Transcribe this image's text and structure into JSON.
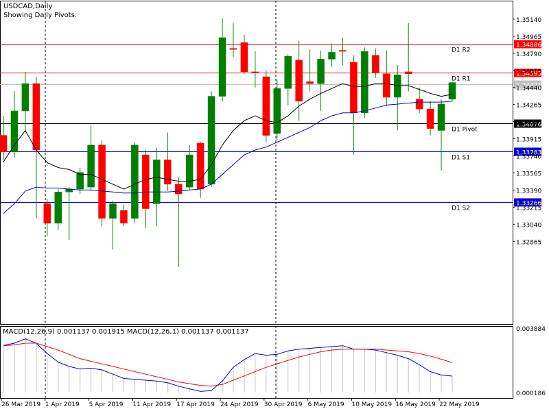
{
  "header": {
    "symbol": "USDCAD,Daily",
    "subtitle": "Showing Daily Pivots."
  },
  "macd_label": "MACD(12,26,9) 0.001137 0.001915 MACD(12,26,1) 0.001137 0.001137",
  "colors": {
    "up": "#008000",
    "down": "#ff0000",
    "wick": "#008000",
    "ma_short": "#000000",
    "ma_long": "#0000cc",
    "r_lines": "#ff0000",
    "s_lines": "#0000cc",
    "pivot": "#000000",
    "grid_sep": "#000000",
    "macd_main": "#0000cc",
    "macd_signal": "#ff0000",
    "macd_hist": "#c0c0c0"
  },
  "price_axis": {
    "min": 1.32,
    "max": 1.352,
    "ticks": [
      "1.35140",
      "1.34965",
      "1.34790",
      "1.34615",
      "1.34440",
      "1.34265",
      "1.34090",
      "1.33915",
      "1.33740",
      "1.33565",
      "1.33390",
      "1.33215",
      "1.33040",
      "1.32865"
    ]
  },
  "levels": [
    {
      "name": "D1 R2",
      "value": "1.34886",
      "type": "r"
    },
    {
      "name": "D1 R1",
      "value": "1.34593",
      "type": "r"
    },
    {
      "name": "current",
      "value": "1.34471",
      "type": "cur"
    },
    {
      "name": "D1 Pivot",
      "value": "1.34076",
      "type": "pivot"
    },
    {
      "name": "D1 S1",
      "value": "1.33783",
      "type": "s"
    },
    {
      "name": "D1 S2",
      "value": "1.33266",
      "type": "s"
    }
  ],
  "macd_axis": {
    "ticks": [
      "0.003884",
      "0.000186"
    ]
  },
  "date_labels": [
    "26 Mar 2019",
    "1 Apr 2019",
    "5 Apr 2019",
    "11 Apr 2019",
    "17 Apr 2019",
    "24 Apr 2019",
    "30 Apr 2019",
    "6 May 2019",
    "10 May 2019",
    "16 May 2019",
    "22 May 2019"
  ],
  "chart_data": {
    "type": "candlestick",
    "candles": [
      {
        "o": 1.3395,
        "h": 1.3415,
        "l": 1.337,
        "c": 1.3378
      },
      {
        "o": 1.3378,
        "h": 1.344,
        "l": 1.3372,
        "c": 1.342
      },
      {
        "o": 1.342,
        "h": 1.346,
        "l": 1.34,
        "c": 1.3448
      },
      {
        "o": 1.3448,
        "h": 1.3455,
        "l": 1.331,
        "c": 1.338
      },
      {
        "o": 1.3325,
        "h": 1.333,
        "l": 1.3292,
        "c": 1.3305
      },
      {
        "o": 1.3305,
        "h": 1.334,
        "l": 1.3298,
        "c": 1.3337
      },
      {
        "o": 1.3337,
        "h": 1.3342,
        "l": 1.3288,
        "c": 1.334
      },
      {
        "o": 1.334,
        "h": 1.3362,
        "l": 1.3335,
        "c": 1.3357
      },
      {
        "o": 1.3342,
        "h": 1.3405,
        "l": 1.3338,
        "c": 1.3385
      },
      {
        "o": 1.3385,
        "h": 1.339,
        "l": 1.3302,
        "c": 1.331
      },
      {
        "o": 1.331,
        "h": 1.3328,
        "l": 1.3278,
        "c": 1.3325
      },
      {
        "o": 1.3318,
        "h": 1.3324,
        "l": 1.3302,
        "c": 1.3305
      },
      {
        "o": 1.331,
        "h": 1.3388,
        "l": 1.3305,
        "c": 1.3385
      },
      {
        "o": 1.3375,
        "h": 1.338,
        "l": 1.33,
        "c": 1.332
      },
      {
        "o": 1.3325,
        "h": 1.3382,
        "l": 1.3302,
        "c": 1.337
      },
      {
        "o": 1.337,
        "h": 1.3398,
        "l": 1.3338,
        "c": 1.3345
      },
      {
        "o": 1.3345,
        "h": 1.3352,
        "l": 1.326,
        "c": 1.3335
      },
      {
        "o": 1.3342,
        "h": 1.3385,
        "l": 1.3339,
        "c": 1.3375
      },
      {
        "o": 1.3387,
        "h": 1.3388,
        "l": 1.3331,
        "c": 1.334
      },
      {
        "o": 1.3345,
        "h": 1.344,
        "l": 1.3342,
        "c": 1.3435
      },
      {
        "o": 1.3435,
        "h": 1.3515,
        "l": 1.343,
        "c": 1.3495
      },
      {
        "o": 1.3484,
        "h": 1.351,
        "l": 1.3475,
        "c": 1.3483
      },
      {
        "o": 1.349,
        "h": 1.3498,
        "l": 1.3458,
        "c": 1.346
      },
      {
        "o": 1.346,
        "h": 1.3481,
        "l": 1.3444,
        "c": 1.3459
      },
      {
        "o": 1.3455,
        "h": 1.3462,
        "l": 1.3388,
        "c": 1.3395
      },
      {
        "o": 1.3397,
        "h": 1.3452,
        "l": 1.339,
        "c": 1.3443
      },
      {
        "o": 1.3443,
        "h": 1.3478,
        "l": 1.3426,
        "c": 1.3476
      },
      {
        "o": 1.3472,
        "h": 1.3492,
        "l": 1.341,
        "c": 1.343
      },
      {
        "o": 1.345,
        "h": 1.3483,
        "l": 1.344,
        "c": 1.3448
      },
      {
        "o": 1.3448,
        "h": 1.3482,
        "l": 1.342,
        "c": 1.3473
      },
      {
        "o": 1.3473,
        "h": 1.3489,
        "l": 1.3465,
        "c": 1.348
      },
      {
        "o": 1.3482,
        "h": 1.3495,
        "l": 1.3467,
        "c": 1.3481
      },
      {
        "o": 1.347,
        "h": 1.3477,
        "l": 1.3375,
        "c": 1.3418
      },
      {
        "o": 1.3418,
        "h": 1.3485,
        "l": 1.3413,
        "c": 1.3481
      },
      {
        "o": 1.3477,
        "h": 1.3484,
        "l": 1.3454,
        "c": 1.3459
      },
      {
        "o": 1.3458,
        "h": 1.3482,
        "l": 1.3425,
        "c": 1.3434
      },
      {
        "o": 1.3434,
        "h": 1.3467,
        "l": 1.34,
        "c": 1.3457
      },
      {
        "o": 1.346,
        "h": 1.351,
        "l": 1.344,
        "c": 1.3458
      },
      {
        "o": 1.3432,
        "h": 1.3444,
        "l": 1.3418,
        "c": 1.3422
      },
      {
        "o": 1.3422,
        "h": 1.343,
        "l": 1.3395,
        "c": 1.3402
      },
      {
        "o": 1.34,
        "h": 1.3432,
        "l": 1.3359,
        "c": 1.3427
      },
      {
        "o": 1.3432,
        "h": 1.345,
        "l": 1.343,
        "c": 1.3449
      }
    ],
    "ma_short": [
      1.3368,
      1.3385,
      1.34,
      1.338,
      1.3367,
      1.3362,
      1.336,
      1.3355,
      1.3355,
      1.335,
      1.3345,
      1.334,
      1.3345,
      1.335,
      1.3352,
      1.335,
      1.3348,
      1.3348,
      1.335,
      1.3365,
      1.3385,
      1.34,
      1.341,
      1.3415,
      1.341,
      1.3408,
      1.3415,
      1.3425,
      1.3432,
      1.3438,
      1.3443,
      1.3448,
      1.3445,
      1.3445,
      1.3448,
      1.3448,
      1.3446,
      1.3446,
      1.3442,
      1.3438,
      1.3435,
      1.3437
    ],
    "ma_long": [
      1.3315,
      1.3325,
      1.3338,
      1.3342,
      1.3341,
      1.3341,
      1.334,
      1.3339,
      1.3339,
      1.3338,
      1.3337,
      1.3336,
      1.3336,
      1.3337,
      1.3337,
      1.3337,
      1.3338,
      1.3339,
      1.334,
      1.3345,
      1.3355,
      1.3365,
      1.3375,
      1.338,
      1.3383,
      1.3388,
      1.3393,
      1.3398,
      1.3403,
      1.341,
      1.3415,
      1.3418,
      1.3418,
      1.342,
      1.3423,
      1.3426,
      1.3427,
      1.3428,
      1.3429,
      1.3429,
      1.3429,
      1.343
    ],
    "macd_main": [
      0.00292,
      0.00305,
      0.0033,
      0.00305,
      0.00245,
      0.00195,
      0.0017,
      0.00155,
      0.0016,
      0.0015,
      0.00125,
      0.001,
      0.00095,
      0.0009,
      0.00085,
      0.00075,
      0.00055,
      0.0004,
      0.00025,
      0.0003,
      0.00085,
      0.00165,
      0.0021,
      0.00245,
      0.00235,
      0.0024,
      0.0026,
      0.0027,
      0.00275,
      0.0028,
      0.00285,
      0.0029,
      0.0027,
      0.0027,
      0.00265,
      0.0025,
      0.00235,
      0.00215,
      0.0018,
      0.0014,
      0.0012,
      0.00114
    ],
    "macd_signal": [
      0.0029,
      0.00295,
      0.00305,
      0.00305,
      0.00285,
      0.00265,
      0.0024,
      0.00215,
      0.002,
      0.00185,
      0.0017,
      0.00155,
      0.0014,
      0.00125,
      0.0011,
      0.00095,
      0.0008,
      0.0007,
      0.0006,
      0.00055,
      0.00065,
      0.0009,
      0.00115,
      0.0014,
      0.00165,
      0.00185,
      0.00205,
      0.00225,
      0.0024,
      0.00255,
      0.00265,
      0.0027,
      0.0027,
      0.0027,
      0.0027,
      0.00265,
      0.0026,
      0.00255,
      0.00245,
      0.0023,
      0.00212,
      0.00192
    ],
    "macd_axis_range": [
      0.000186,
      0.003884
    ]
  }
}
